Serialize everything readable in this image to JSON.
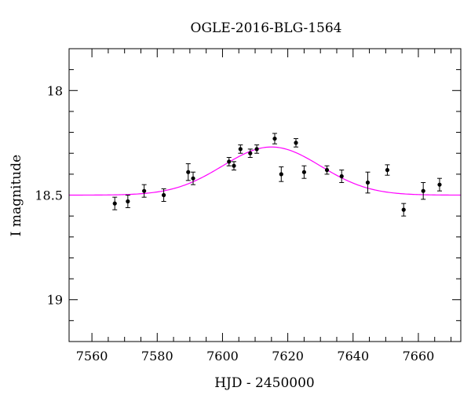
{
  "chart_data": {
    "type": "scatter",
    "title": "OGLE-2016-BLG-1564",
    "xlabel": "HJD - 2450000",
    "ylabel": "I magnitude",
    "xlim": [
      7553,
      7673
    ],
    "ylim": [
      19.2,
      17.8
    ],
    "y_inverted": true,
    "xticks": [
      7560,
      7580,
      7600,
      7620,
      7640,
      7660
    ],
    "yticks": [
      18,
      18.5,
      19
    ],
    "xtick_labels": [
      "7560",
      "7580",
      "7600",
      "7620",
      "7640",
      "7660"
    ],
    "ytick_labels": [
      "18",
      "18.5",
      "19"
    ],
    "grid": false,
    "series": [
      {
        "points": [
          {
            "x": 7567,
            "y": 18.54,
            "err": 0.03
          },
          {
            "x": 7571,
            "y": 18.53,
            "err": 0.03
          },
          {
            "x": 7576,
            "y": 18.48,
            "err": 0.03
          },
          {
            "x": 7582,
            "y": 18.5,
            "err": 0.03
          },
          {
            "x": 7589.5,
            "y": 18.39,
            "err": 0.04
          },
          {
            "x": 7591,
            "y": 18.42,
            "err": 0.03
          },
          {
            "x": 7602,
            "y": 18.34,
            "err": 0.02
          },
          {
            "x": 7603.5,
            "y": 18.36,
            "err": 0.02
          },
          {
            "x": 7605.5,
            "y": 18.28,
            "err": 0.02
          },
          {
            "x": 7608.5,
            "y": 18.3,
            "err": 0.02
          },
          {
            "x": 7610.5,
            "y": 18.28,
            "err": 0.02
          },
          {
            "x": 7616,
            "y": 18.23,
            "err": 0.025
          },
          {
            "x": 7618,
            "y": 18.4,
            "err": 0.035
          },
          {
            "x": 7622.5,
            "y": 18.25,
            "err": 0.02
          },
          {
            "x": 7625,
            "y": 18.39,
            "err": 0.03
          },
          {
            "x": 7632,
            "y": 18.38,
            "err": 0.02
          },
          {
            "x": 7636.5,
            "y": 18.41,
            "err": 0.03
          },
          {
            "x": 7644.5,
            "y": 18.44,
            "err": 0.05
          },
          {
            "x": 7650.5,
            "y": 18.38,
            "err": 0.025
          },
          {
            "x": 7655.5,
            "y": 18.57,
            "err": 0.03
          },
          {
            "x": 7661.5,
            "y": 18.48,
            "err": 0.04
          },
          {
            "x": 7666.5,
            "y": 18.45,
            "err": 0.03
          }
        ]
      }
    ],
    "model": {
      "baseline": 18.5,
      "peak": 18.27,
      "t_peak": 7615,
      "width": 15,
      "color": "#ff00ff"
    },
    "colors": {
      "points": "#000000",
      "frame": "#000000",
      "model": "#ff00ff"
    }
  }
}
